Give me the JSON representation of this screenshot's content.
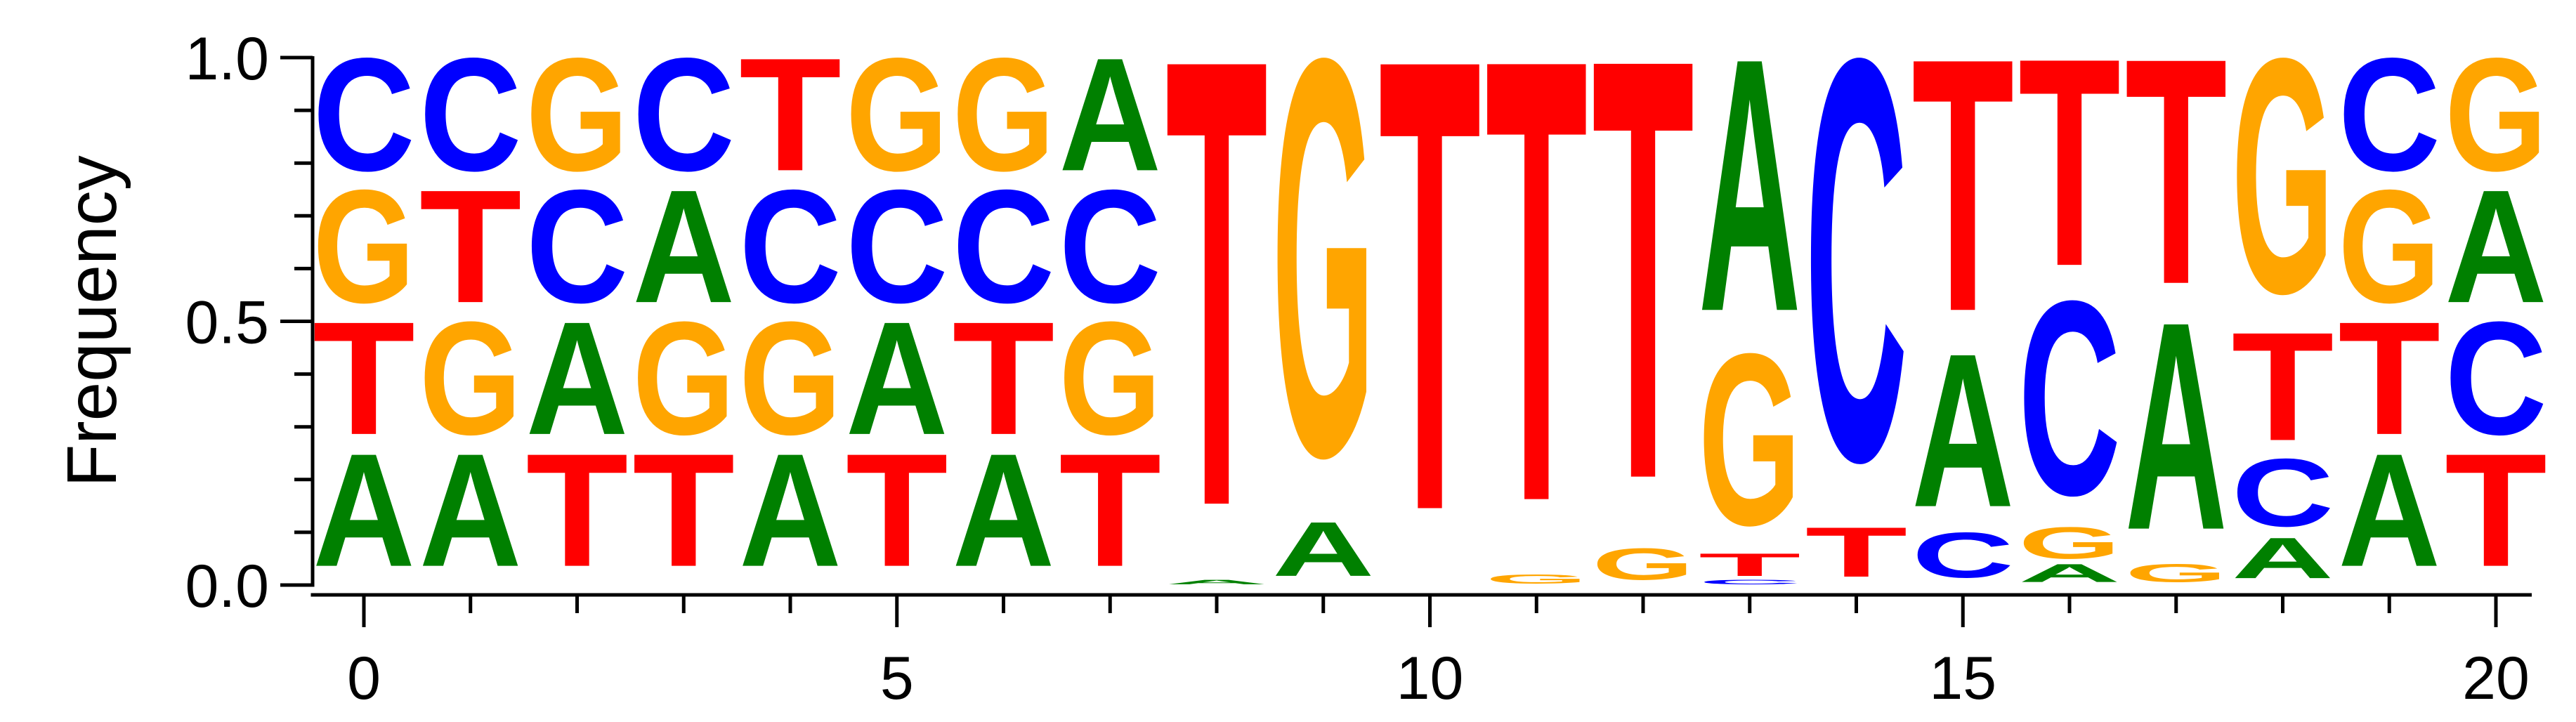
{
  "chart_data": {
    "type": "sequence-logo",
    "title": "",
    "xlabel": "",
    "ylabel": "Frequency",
    "xlim": [
      -0.5,
      20.5
    ],
    "ylim": [
      0,
      1.0
    ],
    "x_ticks": [
      0,
      5,
      10,
      15,
      20
    ],
    "x_tick_labels": [
      "0",
      "5",
      "10",
      "15",
      "20"
    ],
    "x_minor_ticks": [
      0,
      1,
      2,
      3,
      4,
      5,
      6,
      7,
      8,
      9,
      10,
      11,
      12,
      13,
      14,
      15,
      16,
      17,
      18,
      19,
      20
    ],
    "y_ticks": [
      0.0,
      0.5,
      1.0
    ],
    "y_tick_labels": [
      "0.0",
      "0.5",
      "1.0"
    ],
    "y_minor_ticks": [
      0.1,
      0.2,
      0.3,
      0.4,
      0.6,
      0.7,
      0.8,
      0.9
    ],
    "colors": {
      "A": "#008000",
      "C": "#0000ff",
      "G": "#ffa500",
      "T": "#ff0000"
    },
    "grid": false,
    "legend": "none",
    "positions": [
      {
        "x": 0,
        "stack": [
          [
            "A",
            0.25
          ],
          [
            "T",
            0.25
          ],
          [
            "G",
            0.25
          ],
          [
            "C",
            0.25
          ]
        ]
      },
      {
        "x": 1,
        "stack": [
          [
            "A",
            0.25
          ],
          [
            "G",
            0.25
          ],
          [
            "T",
            0.25
          ],
          [
            "C",
            0.25
          ]
        ]
      },
      {
        "x": 2,
        "stack": [
          [
            "T",
            0.25
          ],
          [
            "A",
            0.25
          ],
          [
            "C",
            0.25
          ],
          [
            "G",
            0.25
          ]
        ]
      },
      {
        "x": 3,
        "stack": [
          [
            "T",
            0.25
          ],
          [
            "G",
            0.25
          ],
          [
            "A",
            0.25
          ],
          [
            "C",
            0.25
          ]
        ]
      },
      {
        "x": 4,
        "stack": [
          [
            "A",
            0.25
          ],
          [
            "G",
            0.25
          ],
          [
            "C",
            0.25
          ],
          [
            "T",
            0.25
          ]
        ]
      },
      {
        "x": 5,
        "stack": [
          [
            "T",
            0.25
          ],
          [
            "A",
            0.25
          ],
          [
            "C",
            0.25
          ],
          [
            "G",
            0.25
          ]
        ]
      },
      {
        "x": 6,
        "stack": [
          [
            "A",
            0.25
          ],
          [
            "T",
            0.25
          ],
          [
            "C",
            0.25
          ],
          [
            "G",
            0.25
          ]
        ]
      },
      {
        "x": 7,
        "stack": [
          [
            "T",
            0.25
          ],
          [
            "G",
            0.25
          ],
          [
            "C",
            0.25
          ],
          [
            "A",
            0.25
          ]
        ]
      },
      {
        "x": 8,
        "stack": [
          [
            "A",
            0.01
          ],
          [
            "T",
            0.99
          ]
        ]
      },
      {
        "x": 9,
        "stack": [
          [
            "A",
            0.12
          ],
          [
            "G",
            0.88
          ]
        ]
      },
      {
        "x": 10,
        "stack": [
          [
            "T",
            1.0
          ]
        ]
      },
      {
        "x": 11,
        "stack": [
          [
            "G",
            0.02
          ],
          [
            "T",
            0.98
          ]
        ]
      },
      {
        "x": 12,
        "stack": [
          [
            "G",
            0.07
          ],
          [
            "T",
            0.93
          ]
        ]
      },
      {
        "x": 13,
        "stack": [
          [
            "C",
            0.01
          ],
          [
            "T",
            0.05
          ],
          [
            "G",
            0.38
          ],
          [
            "A",
            0.56
          ]
        ]
      },
      {
        "x": 14,
        "stack": [
          [
            "T",
            0.11
          ],
          [
            "C",
            0.89
          ]
        ]
      },
      {
        "x": 15,
        "stack": [
          [
            "C",
            0.1
          ],
          [
            "A",
            0.34
          ],
          [
            "T",
            0.56
          ]
        ]
      },
      {
        "x": 16,
        "stack": [
          [
            "A",
            0.04
          ],
          [
            "G",
            0.07
          ],
          [
            "C",
            0.43
          ],
          [
            "T",
            0.46
          ]
        ]
      },
      {
        "x": 17,
        "stack": [
          [
            "G",
            0.04
          ],
          [
            "A",
            0.46
          ],
          [
            "T",
            0.5
          ]
        ]
      },
      {
        "x": 18,
        "stack": [
          [
            "A",
            0.09
          ],
          [
            "C",
            0.15
          ],
          [
            "T",
            0.24
          ],
          [
            "G",
            0.52
          ]
        ]
      },
      {
        "x": 19,
        "stack": [
          [
            "A",
            0.25
          ],
          [
            "T",
            0.25
          ],
          [
            "G",
            0.25
          ],
          [
            "C",
            0.25
          ]
        ]
      },
      {
        "x": 20,
        "stack": [
          [
            "T",
            0.25
          ],
          [
            "C",
            0.25
          ],
          [
            "A",
            0.25
          ],
          [
            "G",
            0.25
          ]
        ]
      }
    ]
  }
}
